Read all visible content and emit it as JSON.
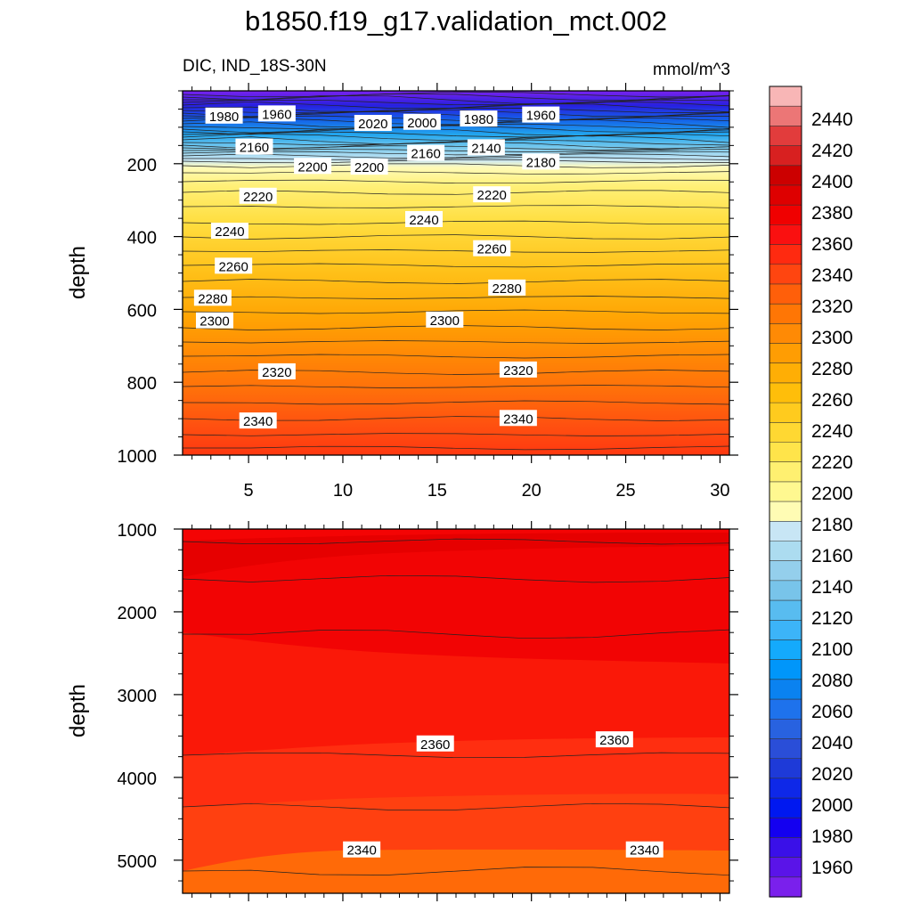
{
  "title": "b1850.f19_g17.validation_mct.002",
  "subtitle": "DIC, IND_18S-30N",
  "units": "mmol/m^3",
  "chart_data": [
    {
      "type": "contour",
      "panel": "upper",
      "ylabel": "depth",
      "xlabel": "",
      "xlim": [
        1.5,
        30.5
      ],
      "ylim": [
        1000,
        0
      ],
      "x_ticks": [
        5,
        10,
        15,
        20,
        25,
        30
      ],
      "y_ticks": [
        200,
        400,
        600,
        800,
        1000
      ],
      "contour_labels": [
        {
          "text": "1980",
          "x": 3.7,
          "depth": 68
        },
        {
          "text": "1960",
          "x": 6.5,
          "depth": 62
        },
        {
          "text": "2020",
          "x": 11.6,
          "depth": 88
        },
        {
          "text": "2000",
          "x": 14.2,
          "depth": 85
        },
        {
          "text": "1980",
          "x": 17.2,
          "depth": 76
        },
        {
          "text": "1960",
          "x": 20.5,
          "depth": 65
        },
        {
          "text": "2160",
          "x": 5.3,
          "depth": 153
        },
        {
          "text": "2160",
          "x": 14.4,
          "depth": 170
        },
        {
          "text": "2140",
          "x": 17.6,
          "depth": 155
        },
        {
          "text": "2200",
          "x": 8.4,
          "depth": 206
        },
        {
          "text": "2200",
          "x": 11.4,
          "depth": 208
        },
        {
          "text": "2180",
          "x": 20.5,
          "depth": 194
        },
        {
          "text": "2220",
          "x": 5.5,
          "depth": 288
        },
        {
          "text": "2220",
          "x": 17.9,
          "depth": 284
        },
        {
          "text": "2240",
          "x": 4.0,
          "depth": 384
        },
        {
          "text": "2240",
          "x": 14.3,
          "depth": 352
        },
        {
          "text": "2260",
          "x": 4.2,
          "depth": 480
        },
        {
          "text": "2260",
          "x": 17.9,
          "depth": 432
        },
        {
          "text": "2280",
          "x": 3.1,
          "depth": 568
        },
        {
          "text": "2280",
          "x": 18.7,
          "depth": 540
        },
        {
          "text": "2300",
          "x": 3.2,
          "depth": 630
        },
        {
          "text": "2300",
          "x": 15.4,
          "depth": 628
        },
        {
          "text": "2320",
          "x": 6.5,
          "depth": 770
        },
        {
          "text": "2320",
          "x": 19.3,
          "depth": 765
        },
        {
          "text": "2340",
          "x": 5.5,
          "depth": 905
        },
        {
          "text": "2340",
          "x": 19.3,
          "depth": 898
        }
      ]
    },
    {
      "type": "contour",
      "panel": "lower",
      "ylabel": "depth",
      "xlabel": "",
      "xlim": [
        1.5,
        30.5
      ],
      "ylim": [
        5400,
        1000
      ],
      "x_ticks": [
        5,
        10,
        15,
        20,
        25,
        30
      ],
      "y_ticks": [
        1000,
        2000,
        3000,
        4000,
        5000
      ],
      "contour_labels": [
        {
          "text": "2360",
          "x": 14.9,
          "depth": 3590
        },
        {
          "text": "2360",
          "x": 24.4,
          "depth": 3540
        },
        {
          "text": "2340",
          "x": 11.0,
          "depth": 4870
        },
        {
          "text": "2340",
          "x": 26.0,
          "depth": 4870
        }
      ]
    }
  ],
  "colorbar": {
    "labels": [
      "2440",
      "2420",
      "2400",
      "2380",
      "2360",
      "2340",
      "2320",
      "2300",
      "2280",
      "2260",
      "2240",
      "2220",
      "2200",
      "2180",
      "2160",
      "2140",
      "2120",
      "2100",
      "2080",
      "2060",
      "2040",
      "2020",
      "2000",
      "1980",
      "1960"
    ],
    "colors": [
      "#f8b6b6",
      "#ec7676",
      "#e23c3c",
      "#d82020",
      "#cc0000",
      "#de0000",
      "#f00000",
      "#fa1010",
      "#ff2a10",
      "#ff4510",
      "#ff5f0a",
      "#ff7605",
      "#ff8a05",
      "#ff9d03",
      "#ffae05",
      "#ffbe0a",
      "#ffcb1e",
      "#ffd832",
      "#ffe44a",
      "#fff070",
      "#fff890",
      "#fffcb4",
      "#c8e6f5",
      "#acdcf0",
      "#94cfec",
      "#78c4ea",
      "#58bcf0",
      "#3cb4f8",
      "#14aafc",
      "#0096fa",
      "#0a82f0",
      "#1e72ec",
      "#2862e0",
      "#2a4ed8",
      "#1e3ad8",
      "#0e28e8",
      "#0018f0",
      "#1400f0",
      "#3a10e8",
      "#5a14e8",
      "#7a20ec"
    ]
  }
}
